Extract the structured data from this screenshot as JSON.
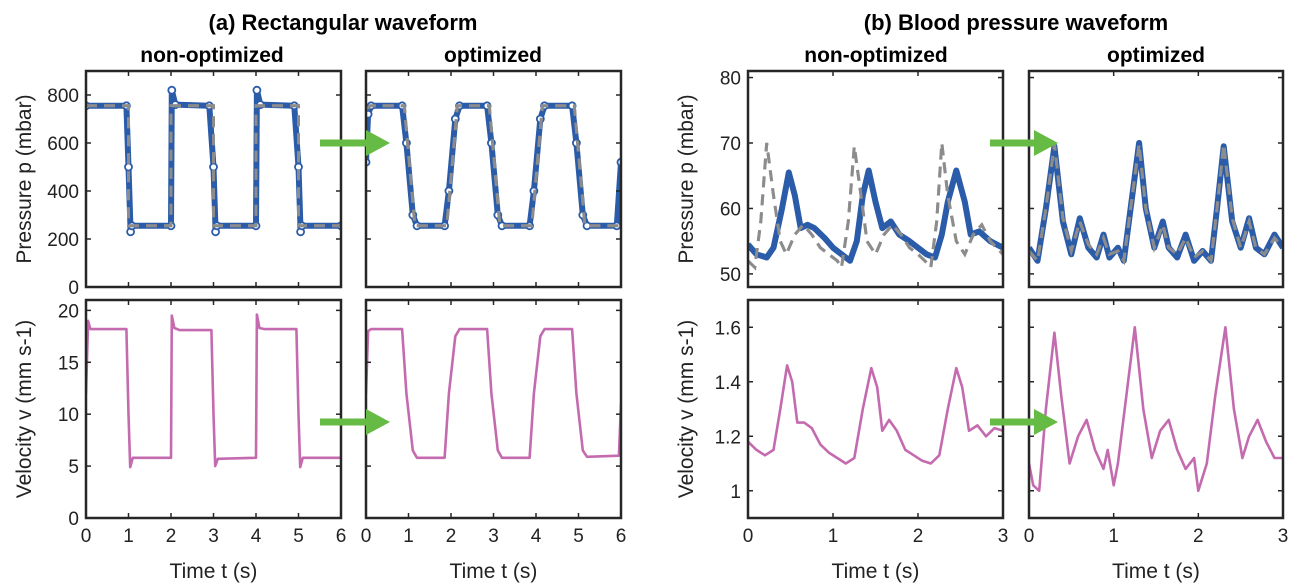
{
  "figure": {
    "group_a_title": "(a) Rectangular waveform",
    "group_b_title": "(b) Blood pressure waveform",
    "col_nonopt": "non-optimized",
    "col_opt": "optimized",
    "xlabel": "Time t (s)",
    "ylabel_pressure": "Pressure p (mbar)",
    "ylabel_velocity": "Velocity v (mm s-1)"
  },
  "colors": {
    "measured_pressure": "#2a5caa",
    "target_pressure": "#8c8c8c",
    "velocity": "#c46bb0",
    "arrow": "#66bb44"
  },
  "chart_data": [
    {
      "id": "a_pressure_nonopt",
      "type": "line",
      "group": "a",
      "column": "non-optimized",
      "xlim": [
        0,
        6
      ],
      "xticks": [
        0,
        1,
        2,
        3,
        4,
        5,
        6
      ],
      "ylim": [
        0,
        900
      ],
      "yticks": [
        0,
        200,
        400,
        600,
        800
      ],
      "ylabel": "Pressure p (mbar)",
      "xlabel": "",
      "series": [
        {
          "role": "measured",
          "style": "markers",
          "x": [
            0,
            0.95,
            1.0,
            1.05,
            1.08,
            2.0,
            2.02,
            2.1,
            2.9,
            3.0,
            3.05,
            3.08,
            4.0,
            4.02,
            4.1,
            4.9,
            5.0,
            5.05,
            5.08,
            6.0
          ],
          "y": [
            755,
            755,
            500,
            230,
            255,
            255,
            820,
            760,
            755,
            500,
            230,
            255,
            255,
            820,
            760,
            755,
            500,
            230,
            255,
            255
          ]
        },
        {
          "role": "target",
          "style": "dashed",
          "x": [
            0,
            1,
            1,
            2,
            2,
            3,
            3,
            4,
            4,
            5,
            5,
            6
          ],
          "y": [
            755,
            755,
            255,
            255,
            755,
            755,
            255,
            255,
            755,
            755,
            255,
            255
          ]
        }
      ]
    },
    {
      "id": "a_pressure_opt",
      "type": "line",
      "group": "a",
      "column": "optimized",
      "xlim": [
        0,
        6
      ],
      "xticks": [
        0,
        1,
        2,
        3,
        4,
        5,
        6
      ],
      "ylim": [
        0,
        900
      ],
      "yticks": [
        0,
        200,
        400,
        600,
        800
      ],
      "series": [
        {
          "role": "measured",
          "style": "markers",
          "x": [
            0,
            0.05,
            0.12,
            0.85,
            0.95,
            1.1,
            1.2,
            1.85,
            1.95,
            2.1,
            2.2,
            2.85,
            2.95,
            3.1,
            3.2,
            3.85,
            3.95,
            4.1,
            4.2,
            4.85,
            4.95,
            5.1,
            5.2,
            5.9,
            6.0
          ],
          "y": [
            520,
            720,
            755,
            755,
            600,
            300,
            255,
            255,
            400,
            700,
            755,
            755,
            600,
            300,
            255,
            255,
            400,
            700,
            755,
            755,
            600,
            300,
            255,
            255,
            520
          ]
        },
        {
          "role": "target",
          "style": "dashed",
          "x": [
            0,
            0.1,
            0.9,
            1.15,
            1.9,
            2.15,
            2.9,
            3.15,
            3.9,
            4.15,
            4.9,
            5.15,
            6.0
          ],
          "y": [
            740,
            755,
            755,
            255,
            255,
            755,
            755,
            255,
            255,
            755,
            755,
            255,
            255
          ]
        }
      ]
    },
    {
      "id": "a_velocity_nonopt",
      "type": "line",
      "group": "a",
      "column": "non-optimized",
      "xlim": [
        0,
        6
      ],
      "xticks": [
        0,
        1,
        2,
        3,
        4,
        5,
        6
      ],
      "ylim": [
        0,
        21
      ],
      "yticks": [
        0,
        5,
        10,
        15,
        20
      ],
      "ylabel": "Velocity v (mm s-1)",
      "xlabel": "Time t (s)",
      "series": [
        {
          "role": "velocity",
          "style": "line",
          "x": [
            0,
            0.05,
            0.1,
            0.95,
            1.0,
            1.04,
            1.1,
            2.0,
            2.02,
            2.08,
            2.2,
            2.95,
            3.0,
            3.04,
            3.1,
            4.0,
            4.02,
            4.08,
            4.2,
            4.95,
            5.0,
            5.04,
            5.1,
            6.0
          ],
          "y": [
            12,
            19,
            18.2,
            18.2,
            10,
            4.9,
            5.8,
            5.8,
            19.5,
            18.3,
            18.1,
            18.1,
            10,
            5.0,
            5.7,
            5.8,
            19.6,
            18.3,
            18.2,
            18.2,
            10,
            4.9,
            5.8,
            5.8
          ]
        }
      ]
    },
    {
      "id": "a_velocity_opt",
      "type": "line",
      "group": "a",
      "column": "optimized",
      "xlim": [
        0,
        6
      ],
      "xticks": [
        0,
        1,
        2,
        3,
        4,
        5,
        6
      ],
      "ylim": [
        0,
        21
      ],
      "yticks": [
        0,
        5,
        10,
        15,
        20
      ],
      "xlabel": "Time t (s)",
      "series": [
        {
          "role": "velocity",
          "style": "line",
          "x": [
            0,
            0.05,
            0.12,
            0.85,
            0.95,
            1.1,
            1.2,
            1.85,
            1.95,
            2.1,
            2.2,
            2.85,
            2.95,
            3.1,
            3.2,
            3.85,
            3.95,
            4.1,
            4.2,
            4.85,
            4.95,
            5.1,
            5.2,
            5.95,
            6.0
          ],
          "y": [
            12,
            18,
            18.2,
            18.2,
            12,
            6.5,
            5.8,
            5.8,
            12,
            17.5,
            18.2,
            18.2,
            12,
            6.5,
            5.8,
            5.8,
            12,
            17.5,
            18.2,
            18.2,
            12,
            6.5,
            5.9,
            6.0,
            11
          ]
        }
      ]
    },
    {
      "id": "b_pressure_nonopt",
      "type": "line",
      "group": "b",
      "column": "non-optimized",
      "xlim": [
        0,
        3
      ],
      "xticks": [
        0,
        1,
        2,
        3
      ],
      "ylim": [
        48,
        81
      ],
      "yticks": [
        50,
        60,
        70,
        80
      ],
      "ylabel": "Pressure p (mbar)",
      "xlabel": "",
      "series": [
        {
          "role": "measured",
          "style": "thick",
          "x": [
            0,
            0.1,
            0.22,
            0.3,
            0.4,
            0.48,
            0.55,
            0.62,
            0.7,
            0.78,
            0.9,
            1.0,
            1.1,
            1.2,
            1.28,
            1.35,
            1.42,
            1.5,
            1.58,
            1.68,
            1.78,
            1.9,
            2.0,
            2.1,
            2.2,
            2.28,
            2.35,
            2.45,
            2.55,
            2.62,
            2.72,
            2.85,
            3.0
          ],
          "y": [
            54.5,
            53,
            52.5,
            54,
            60,
            65.5,
            62,
            57,
            57.5,
            57,
            55.5,
            54,
            53,
            52,
            55,
            62,
            65.8,
            61,
            57,
            58,
            56,
            55,
            54,
            53,
            52.5,
            56,
            61,
            65.8,
            61,
            56,
            56.5,
            55,
            54
          ]
        },
        {
          "role": "target",
          "style": "dashed",
          "x": [
            0,
            0.08,
            0.15,
            0.22,
            0.3,
            0.38,
            0.45,
            0.55,
            0.65,
            0.75,
            0.85,
            0.95,
            1.05,
            1.1,
            1.18,
            1.25,
            1.33,
            1.4,
            1.5,
            1.6,
            1.7,
            1.8,
            1.9,
            2.0,
            2.08,
            2.15,
            2.22,
            2.28,
            2.35,
            2.45,
            2.55,
            2.65,
            2.75,
            2.85,
            3.0
          ],
          "y": [
            52,
            51,
            58,
            70,
            62,
            55,
            53,
            56,
            57.5,
            56,
            54,
            53,
            52,
            51,
            58,
            69.5,
            62,
            55,
            53,
            56,
            57.5,
            56,
            54,
            53,
            52,
            51,
            58,
            70,
            62,
            55,
            53,
            56,
            57.5,
            55,
            53
          ]
        }
      ]
    },
    {
      "id": "b_pressure_opt",
      "type": "line",
      "group": "b",
      "column": "optimized",
      "xlim": [
        0,
        3
      ],
      "xticks": [
        0,
        1,
        2,
        3
      ],
      "ylim": [
        48,
        81
      ],
      "yticks": [
        50,
        60,
        70,
        80
      ],
      "series": [
        {
          "role": "measured",
          "style": "thick",
          "x": [
            0,
            0.1,
            0.2,
            0.3,
            0.4,
            0.5,
            0.6,
            0.7,
            0.8,
            0.88,
            0.95,
            1.05,
            1.12,
            1.2,
            1.3,
            1.38,
            1.48,
            1.58,
            1.65,
            1.75,
            1.85,
            1.95,
            2.05,
            2.15,
            2.22,
            2.3,
            2.4,
            2.5,
            2.6,
            2.68,
            2.78,
            2.9,
            3.0
          ],
          "y": [
            54,
            52,
            60,
            69.5,
            58,
            53,
            58.5,
            54,
            52.5,
            56,
            52.5,
            54,
            52,
            60,
            70,
            60,
            54,
            58,
            54,
            52.5,
            56,
            52,
            53.5,
            52,
            60,
            69.5,
            58,
            54,
            58.5,
            54,
            53,
            56,
            54
          ]
        },
        {
          "role": "target",
          "style": "dashed",
          "x": [
            0,
            0.1,
            0.2,
            0.3,
            0.4,
            0.5,
            0.6,
            0.7,
            0.8,
            0.88,
            0.95,
            1.05,
            1.12,
            1.2,
            1.3,
            1.38,
            1.48,
            1.58,
            1.65,
            1.75,
            1.85,
            1.95,
            2.05,
            2.15,
            2.22,
            2.3,
            2.4,
            2.5,
            2.6,
            2.68,
            2.78,
            2.9,
            3.0
          ],
          "y": [
            53.5,
            52,
            60,
            69.8,
            58.5,
            53.5,
            58,
            54.5,
            53,
            55.5,
            53,
            53.5,
            52,
            60,
            69.8,
            60,
            54,
            57.5,
            54,
            53,
            55.5,
            52.5,
            53.5,
            52,
            60,
            69.8,
            58.5,
            54,
            58,
            54,
            53,
            55.5,
            54
          ]
        }
      ]
    },
    {
      "id": "b_velocity_nonopt",
      "type": "line",
      "group": "b",
      "column": "non-optimized",
      "xlim": [
        0,
        3
      ],
      "xticks": [
        0,
        1,
        2,
        3
      ],
      "ylim": [
        0.9,
        1.7
      ],
      "yticks": [
        1,
        1.2,
        1.4,
        1.6
      ],
      "ylabel": "Velocity v (mm s-1)",
      "xlabel": "Time t (s)",
      "series": [
        {
          "role": "velocity",
          "style": "line",
          "x": [
            0,
            0.1,
            0.2,
            0.3,
            0.38,
            0.46,
            0.52,
            0.58,
            0.66,
            0.75,
            0.85,
            0.95,
            1.05,
            1.15,
            1.25,
            1.35,
            1.45,
            1.52,
            1.58,
            1.66,
            1.75,
            1.85,
            1.95,
            2.05,
            2.15,
            2.25,
            2.35,
            2.45,
            2.52,
            2.6,
            2.7,
            2.8,
            2.9,
            3.0
          ],
          "y": [
            1.18,
            1.15,
            1.13,
            1.15,
            1.3,
            1.46,
            1.4,
            1.25,
            1.25,
            1.23,
            1.17,
            1.14,
            1.12,
            1.1,
            1.12,
            1.3,
            1.45,
            1.38,
            1.22,
            1.26,
            1.22,
            1.15,
            1.13,
            1.11,
            1.1,
            1.13,
            1.3,
            1.45,
            1.38,
            1.22,
            1.24,
            1.2,
            1.23,
            1.22
          ]
        }
      ]
    },
    {
      "id": "b_velocity_opt",
      "type": "line",
      "group": "b",
      "column": "optimized",
      "xlim": [
        0,
        3
      ],
      "xticks": [
        0,
        1,
        2,
        3
      ],
      "ylim": [
        0.9,
        1.7
      ],
      "yticks": [
        1,
        1.2,
        1.4,
        1.6
      ],
      "xlabel": "Time t (s)",
      "series": [
        {
          "role": "velocity",
          "style": "line",
          "x": [
            0,
            0.05,
            0.12,
            0.2,
            0.3,
            0.38,
            0.48,
            0.58,
            0.68,
            0.78,
            0.88,
            0.93,
            1.0,
            1.05,
            1.15,
            1.25,
            1.35,
            1.45,
            1.55,
            1.65,
            1.75,
            1.85,
            1.95,
            2.0,
            2.1,
            2.2,
            2.32,
            2.42,
            2.52,
            2.6,
            2.7,
            2.8,
            2.9,
            3.0
          ],
          "y": [
            1.1,
            1.02,
            1.0,
            1.3,
            1.58,
            1.35,
            1.1,
            1.2,
            1.26,
            1.15,
            1.08,
            1.15,
            1.02,
            1.1,
            1.35,
            1.6,
            1.3,
            1.12,
            1.22,
            1.26,
            1.15,
            1.08,
            1.12,
            1.0,
            1.1,
            1.35,
            1.6,
            1.3,
            1.12,
            1.2,
            1.26,
            1.18,
            1.12,
            1.12
          ]
        }
      ]
    }
  ]
}
